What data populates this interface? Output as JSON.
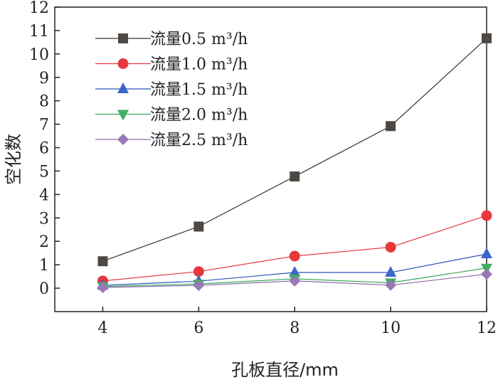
{
  "chart_data": {
    "type": "line",
    "title": "",
    "xlabel": "孔板直径/mm",
    "ylabel": "空化数",
    "x": [
      4,
      6,
      8,
      10,
      12
    ],
    "xlim": [
      3,
      12
    ],
    "ylim": [
      -1,
      12
    ],
    "xticks": [
      "4",
      "6",
      "8",
      "10",
      "12"
    ],
    "yticks": [
      "0",
      "1",
      "2",
      "3",
      "4",
      "5",
      "6",
      "7",
      "8",
      "9",
      "10",
      "11",
      "12"
    ],
    "legend_position": "top-left",
    "series": [
      {
        "name": "流量0.5 m³/h",
        "legend_prefix": "流量",
        "legend_value": "0.5",
        "legend_unit": "m³/h",
        "marker": "square",
        "line_color": "#333333",
        "marker_color": "#4d4843",
        "values": [
          1.15,
          2.63,
          4.77,
          6.92,
          10.67
        ]
      },
      {
        "name": "流量1.0 m³/h",
        "legend_prefix": "流量",
        "legend_value": "1.0",
        "legend_unit": "m³/h",
        "marker": "circle",
        "line_color": "#e8383d",
        "marker_color": "#e8383d",
        "values": [
          0.31,
          0.71,
          1.37,
          1.75,
          3.1
        ]
      },
      {
        "name": "流量1.5 m³/h",
        "legend_prefix": "流量",
        "legend_value": "1.5",
        "legend_unit": "m³/h",
        "marker": "triangle-up",
        "line_color": "#2a55b8",
        "marker_color": "#3a66c8",
        "values": [
          0.12,
          0.3,
          0.67,
          0.67,
          1.46
        ]
      },
      {
        "name": "流量2.0 m³/h",
        "legend_prefix": "流量",
        "legend_value": "2.0",
        "legend_unit": "m³/h",
        "marker": "triangle-down",
        "line_color": "#3aa85a",
        "marker_color": "#3fae62",
        "values": [
          0.07,
          0.18,
          0.4,
          0.23,
          0.86
        ]
      },
      {
        "name": "流量2.5 m³/h",
        "legend_prefix": "流量",
        "legend_value": "2.5",
        "legend_unit": "m³/h",
        "marker": "diamond",
        "line_color": "#8e6aa8",
        "marker_color": "#9a78b6",
        "values": [
          0.03,
          0.12,
          0.31,
          0.13,
          0.6
        ]
      }
    ]
  }
}
